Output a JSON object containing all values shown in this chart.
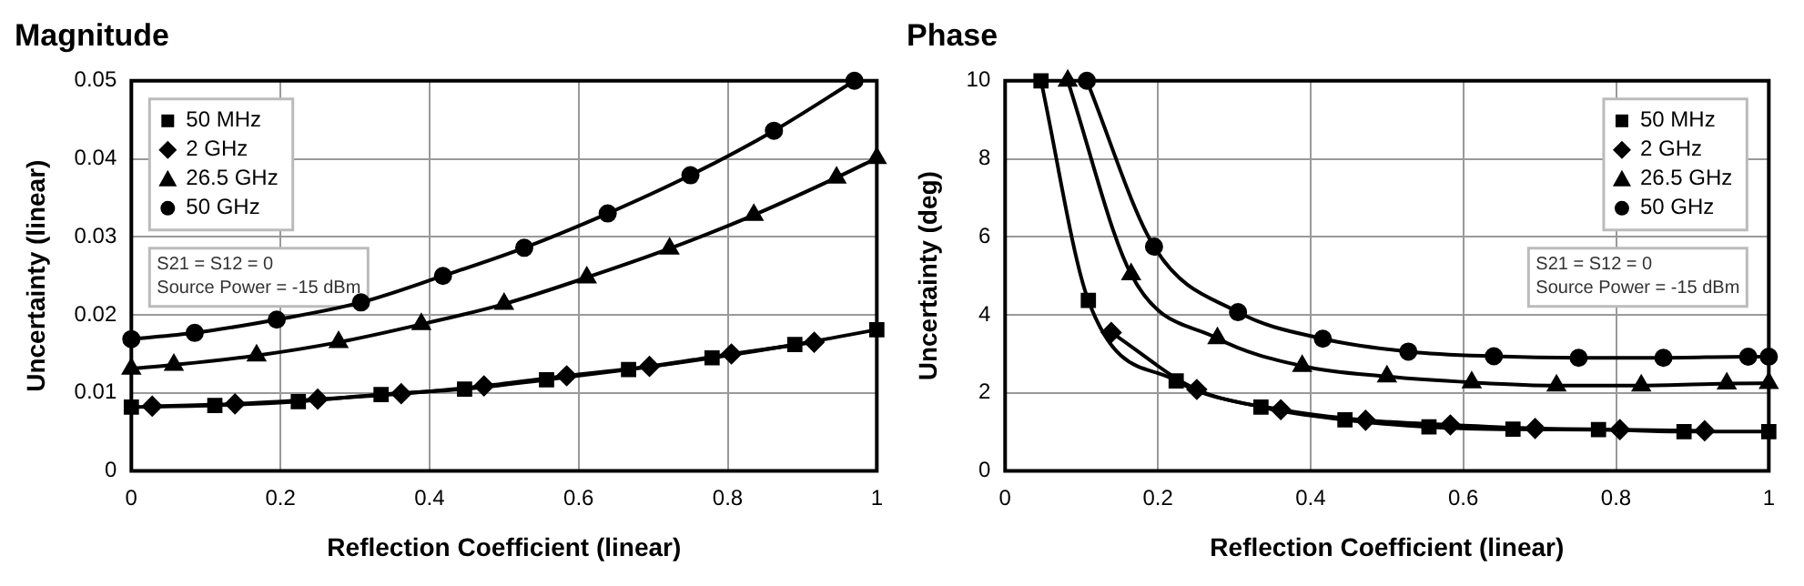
{
  "chart_data": [
    {
      "type": "line",
      "title": "Magnitude",
      "xlabel": "Reflection Coefficient (linear)",
      "ylabel": "Uncertainty (linear)",
      "xlim": [
        0,
        1
      ],
      "xticks": [
        0,
        0.2,
        0.4,
        0.6,
        0.8,
        1
      ],
      "ylim": [
        0,
        0.05
      ],
      "yticks": [
        0,
        0.01,
        0.02,
        0.03,
        0.04,
        0.05
      ],
      "grid": true,
      "legend": "top left",
      "annotations": [
        "S21 = S12 = 0",
        "Source Power = -15 dBm"
      ],
      "series": [
        {
          "name": "50 MHz",
          "color": "#000000",
          "marker": "square",
          "x": [
            0,
            0.112,
            0.224,
            0.335,
            0.447,
            0.557,
            0.667,
            0.779,
            0.89,
            1
          ],
          "values": [
            0.0082,
            0.0084,
            0.0089,
            0.0098,
            0.0105,
            0.0117,
            0.013,
            0.0145,
            0.0162,
            0.0181
          ]
        },
        {
          "name": "2 GHz",
          "color": "#000000",
          "marker": "diamond",
          "x": [
            0.028,
            0.139,
            0.25,
            0.362,
            0.473,
            0.584,
            0.695,
            0.805,
            0.916
          ],
          "values": [
            0.0083,
            0.0086,
            0.0092,
            0.0099,
            0.0109,
            0.0122,
            0.0134,
            0.015,
            0.0165
          ]
        },
        {
          "name": "26.5 GHz",
          "color": "#000000",
          "marker": "triangle",
          "x": [
            0,
            0.057,
            0.168,
            0.278,
            0.389,
            0.5,
            0.611,
            0.722,
            0.835,
            0.946,
            1
          ],
          "values": [
            0.0131,
            0.0136,
            0.0148,
            0.0165,
            0.0188,
            0.0214,
            0.0248,
            0.0285,
            0.0328,
            0.0376,
            0.0401
          ]
        },
        {
          "name": "50 GHz",
          "color": "#000000",
          "marker": "circle",
          "x": [
            0,
            0.085,
            0.195,
            0.308,
            0.418,
            0.527,
            0.639,
            0.75,
            0.862,
            0.97
          ],
          "values": [
            0.0169,
            0.0177,
            0.0194,
            0.0216,
            0.025,
            0.0286,
            0.033,
            0.0379,
            0.0436,
            0.05
          ]
        }
      ]
    },
    {
      "type": "line",
      "title": "Phase",
      "xlabel": "Reflection Coefficient (linear)",
      "ylabel": "Uncertainty (deg)",
      "xlim": [
        0,
        1
      ],
      "xticks": [
        0,
        0.2,
        0.4,
        0.6,
        0.8,
        1
      ],
      "ylim": [
        0,
        10
      ],
      "yticks": [
        0,
        2,
        4,
        6,
        8,
        10
      ],
      "grid": true,
      "legend": "top right",
      "annotations": [
        "S21 = S12 = 0",
        "Source Power = -15 dBm"
      ],
      "series": [
        {
          "name": "50 MHz",
          "color": "#000000",
          "marker": "square",
          "x": [
            0.047,
            0.109,
            0.224,
            0.335,
            0.445,
            0.555,
            0.665,
            0.777,
            0.889,
            1
          ],
          "values": [
            10,
            4.37,
            2.31,
            1.64,
            1.31,
            1.13,
            1.07,
            1.06,
            1.01,
            1.01
          ]
        },
        {
          "name": "2 GHz",
          "color": "#000000",
          "marker": "diamond",
          "x": [
            0.139,
            0.251,
            0.361,
            0.472,
            0.583,
            0.694,
            0.805,
            0.916
          ],
          "values": [
            3.55,
            2.09,
            1.57,
            1.3,
            1.18,
            1.09,
            1.06,
            1.03
          ]
        },
        {
          "name": "26.5 GHz",
          "color": "#000000",
          "marker": "triangle",
          "x": [
            0.082,
            0.165,
            0.278,
            0.389,
            0.5,
            0.611,
            0.722,
            0.833,
            0.945,
            1
          ],
          "values": [
            10,
            5.04,
            3.4,
            2.69,
            2.42,
            2.27,
            2.19,
            2.19,
            2.24,
            2.25
          ]
        },
        {
          "name": "50 GHz",
          "color": "#000000",
          "marker": "circle",
          "x": [
            0.107,
            0.195,
            0.305,
            0.416,
            0.528,
            0.64,
            0.751,
            0.862,
            0.973,
            1
          ],
          "values": [
            10,
            5.75,
            4.07,
            3.39,
            3.06,
            2.94,
            2.9,
            2.9,
            2.93,
            2.93
          ]
        }
      ]
    }
  ]
}
